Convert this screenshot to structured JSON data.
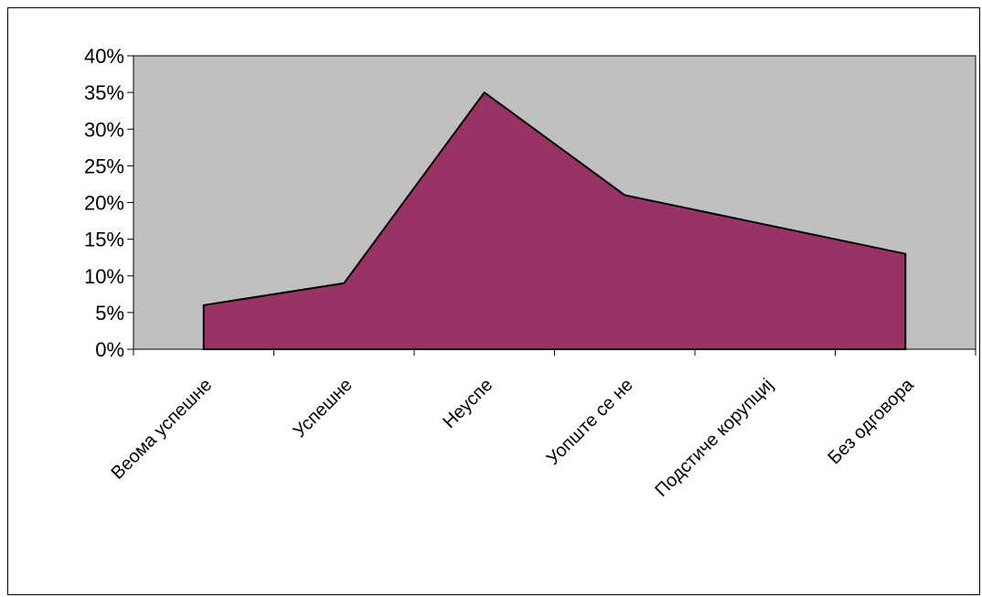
{
  "chart_data": {
    "type": "area",
    "categories": [
      "Веома успешне",
      "Успешне",
      "Неуспе",
      "Уопште се не",
      "Подстиче корупциј",
      "Без одговора"
    ],
    "values": [
      6,
      9,
      35,
      21,
      17,
      13
    ],
    "y_ticks": [
      "0%",
      "5%",
      "10%",
      "15%",
      "20%",
      "25%",
      "30%",
      "35%",
      "40%"
    ],
    "ylim": [
      0,
      40
    ],
    "title": "",
    "xlabel": "",
    "ylabel": "",
    "grid": false,
    "legend": "none",
    "colors": {
      "area_fill": "#993366",
      "plot_background": "#c0c0c0",
      "axis": "#000000"
    }
  }
}
